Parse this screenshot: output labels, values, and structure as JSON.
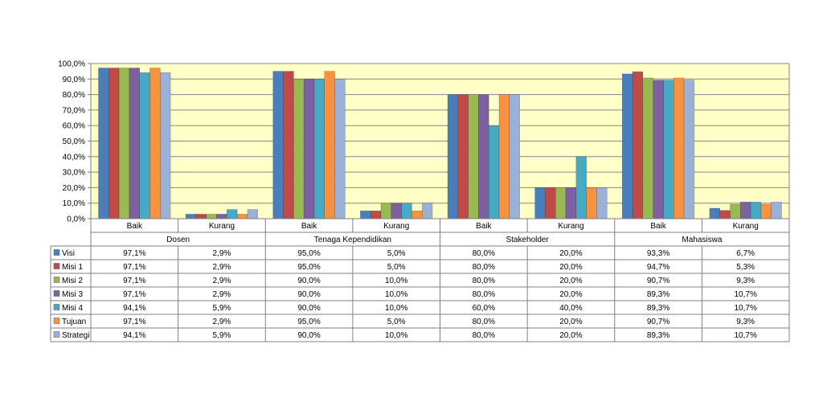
{
  "chart_data": {
    "type": "bar",
    "ylim": [
      0,
      100
    ],
    "yticks": [
      "0,0%",
      "10,0%",
      "20,0%",
      "30,0%",
      "40,0%",
      "50,0%",
      "60,0%",
      "70,0%",
      "80,0%",
      "90,0%",
      "100,0%"
    ],
    "grid": true,
    "plot_background": "#ffffc8",
    "groups": [
      "Dosen",
      "Tenaga Kependidikan",
      "Stakeholder",
      "Mahasiswa"
    ],
    "categories": [
      "Baik",
      "Kurang",
      "Baik",
      "Kurang",
      "Baik",
      "Kurang",
      "Baik",
      "Kurang"
    ],
    "series": [
      {
        "name": "Visi",
        "color": "#4a7ebb",
        "values": [
          97.1,
          2.9,
          95.0,
          5.0,
          80.0,
          20.0,
          93.3,
          6.7
        ],
        "labels": [
          "97,1%",
          "2,9%",
          "95,0%",
          "5,0%",
          "80,0%",
          "20,0%",
          "93,3%",
          "6,7%"
        ]
      },
      {
        "name": "Misi 1",
        "color": "#be4b48",
        "values": [
          97.1,
          2.9,
          95.0,
          5.0,
          80.0,
          20.0,
          94.7,
          5.3
        ],
        "labels": [
          "97,1%",
          "2,9%",
          "95,0%",
          "5,0%",
          "80,0%",
          "20,0%",
          "94,7%",
          "5,3%"
        ]
      },
      {
        "name": "Misi 2",
        "color": "#98b954",
        "values": [
          97.1,
          2.9,
          90.0,
          10.0,
          80.0,
          20.0,
          90.7,
          9.3
        ],
        "labels": [
          "97,1%",
          "2,9%",
          "90,0%",
          "10,0%",
          "80,0%",
          "20,0%",
          "90,7%",
          "9,3%"
        ]
      },
      {
        "name": "Misi 3",
        "color": "#7d60a0",
        "values": [
          97.1,
          2.9,
          90.0,
          10.0,
          80.0,
          20.0,
          89.3,
          10.7
        ],
        "labels": [
          "97,1%",
          "2,9%",
          "90,0%",
          "10,0%",
          "80,0%",
          "20,0%",
          "89,3%",
          "10,7%"
        ]
      },
      {
        "name": "Misi 4",
        "color": "#46aac5",
        "values": [
          94.1,
          5.9,
          90.0,
          10.0,
          60.0,
          40.0,
          89.3,
          10.7
        ],
        "labels": [
          "94,1%",
          "5,9%",
          "90,0%",
          "10,0%",
          "60,0%",
          "40,0%",
          "89,3%",
          "10,7%"
        ]
      },
      {
        "name": "Tujuan",
        "color": "#f69240",
        "values": [
          97.1,
          2.9,
          95.0,
          5.0,
          80.0,
          20.0,
          90.7,
          9.3
        ],
        "labels": [
          "97,1%",
          "2,9%",
          "95,0%",
          "5,0%",
          "80,0%",
          "20,0%",
          "90,7%",
          "9,3%"
        ]
      },
      {
        "name": "Strategi",
        "color": "#9cb1d6",
        "values": [
          94.1,
          5.9,
          90.0,
          10.0,
          80.0,
          20.0,
          89.3,
          10.7
        ],
        "labels": [
          "94,1%",
          "5,9%",
          "90,0%",
          "10,0%",
          "80,0%",
          "20,0%",
          "89,3%",
          "10,7%"
        ]
      }
    ]
  }
}
